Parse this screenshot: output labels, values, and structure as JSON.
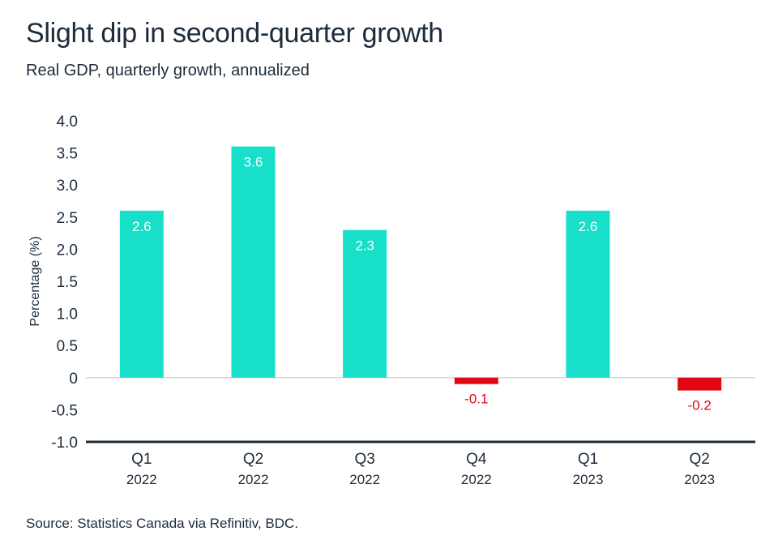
{
  "header": {
    "title": "Slight dip in second-quarter growth",
    "subtitle": "Real GDP, quarterly growth, annualized"
  },
  "footer": {
    "source": "Source: Statistics Canada via Refinitiv, BDC."
  },
  "colors": {
    "positive": "#17dfca",
    "negative": "#e30613",
    "text": "#1d2b3a",
    "axis": "#1d2b3a",
    "zero_line": "#e6d2c8"
  },
  "chart_data": {
    "type": "bar",
    "categories": [
      "Q1",
      "Q2",
      "Q3",
      "Q4",
      "Q1",
      "Q2"
    ],
    "category_years": [
      "2022",
      "2022",
      "2022",
      "2022",
      "2023",
      "2023"
    ],
    "values": [
      2.6,
      3.6,
      2.3,
      -0.1,
      2.6,
      -0.2
    ],
    "data_labels": [
      "2.6",
      "3.6",
      "2.3",
      "-0.1",
      "2.6",
      "-0.2"
    ],
    "ylabel": "Percentage (%)",
    "ylim": [
      -1.0,
      4.0
    ],
    "yticks": [
      4.0,
      3.5,
      3.0,
      2.5,
      2.0,
      1.5,
      1.0,
      0.5,
      0,
      -0.5,
      -1.0
    ],
    "ytick_labels": [
      "4.0",
      "3.5",
      "3.0",
      "2.5",
      "2.0",
      "1.5",
      "1.0",
      "0.5",
      "0",
      "-0.5",
      "-1.0"
    ],
    "grid": false,
    "legend": "none"
  }
}
